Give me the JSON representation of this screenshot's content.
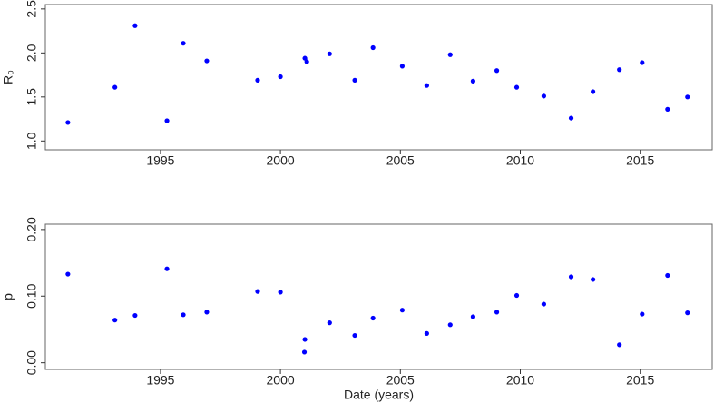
{
  "chart_data": [
    {
      "type": "scatter",
      "y_label": "R₀",
      "color": "#0000ff",
      "x": [
        1991.14,
        1993.1,
        1993.94,
        1995.27,
        1995.95,
        1996.93,
        1999.05,
        2000.0,
        2001.02,
        2001.1,
        2002.05,
        2003.1,
        2003.86,
        2005.08,
        2006.1,
        2007.08,
        2008.03,
        2009.02,
        2009.85,
        2010.98,
        2012.12,
        2013.03,
        2014.13,
        2015.08,
        2016.14,
        2016.97
      ],
      "values": [
        1.21,
        1.61,
        2.31,
        1.23,
        2.11,
        1.91,
        1.69,
        1.73,
        1.94,
        1.9,
        1.99,
        1.69,
        2.06,
        1.85,
        1.63,
        1.98,
        1.68,
        1.8,
        1.61,
        1.51,
        1.26,
        1.56,
        1.81,
        1.89,
        1.36,
        1.5
      ],
      "xlim": [
        1990.2,
        2018
      ],
      "xticks": [
        1995,
        2000,
        2005,
        2010,
        2015
      ],
      "ylim": [
        0.9,
        2.55
      ],
      "yticks": [
        {
          "value": 1,
          "label": "1.0"
        },
        1.5,
        {
          "value": 2,
          "label": "2.0"
        },
        2.5
      ]
    },
    {
      "type": "scatter",
      "x_label": "Date (years)",
      "y_label": "p",
      "color": "#0000ff",
      "x": [
        1991.14,
        1993.1,
        1993.94,
        1995.27,
        1995.95,
        1996.93,
        1999.05,
        2000.0,
        2001.02,
        2001.0,
        2002.05,
        2003.1,
        2003.86,
        2005.08,
        2006.1,
        2007.08,
        2008.03,
        2009.02,
        2009.85,
        2010.98,
        2012.12,
        2013.03,
        2014.13,
        2015.08,
        2016.14,
        2016.97
      ],
      "values": [
        0.133,
        0.064,
        0.071,
        0.141,
        0.072,
        0.076,
        0.107,
        0.106,
        0.035,
        0.016,
        0.06,
        0.041,
        0.067,
        0.079,
        0.044,
        0.057,
        0.069,
        0.076,
        0.101,
        0.088,
        0.129,
        0.125,
        0.027,
        0.073,
        0.131,
        0.075
      ],
      "xlim": [
        1990.2,
        2018
      ],
      "xticks": [
        1995,
        2000,
        2005,
        2010,
        2015
      ],
      "ylim": [
        -0.01,
        0.208
      ],
      "yticks": [
        {
          "value": 0,
          "label": "0.00"
        },
        {
          "value": 0.1,
          "label": "0.10"
        },
        {
          "value": 0.2,
          "label": "0.20"
        }
      ]
    }
  ]
}
